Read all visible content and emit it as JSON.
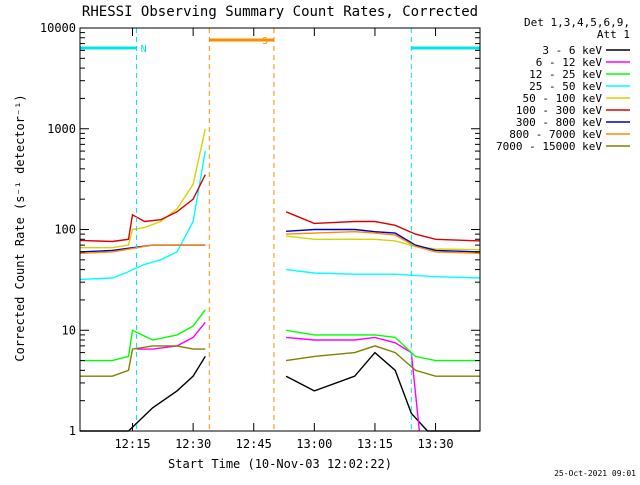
{
  "chart_data": {
    "type": "line",
    "title": "RHESSI Observing Summary Count Rates, Corrected",
    "xlabel": "Start Time (10-Nov-03 12:02:22)",
    "ylabel": "Corrected Count Rate (s⁻¹ detector⁻¹)",
    "yscale": "log",
    "ylim": [
      1,
      10000
    ],
    "xlim": [
      "12:02",
      "13:41"
    ],
    "x_ticks": [
      "12:15",
      "12:30",
      "12:45",
      "13:00",
      "13:15",
      "13:30"
    ],
    "y_ticks": [
      "1",
      "10",
      "100",
      "1000",
      "10000"
    ],
    "grid": false,
    "legend_position": "right",
    "legend_header": [
      "Det 1,3,4,5,6,9,",
      "Att 1"
    ],
    "footer_timestamp": "25-Oct-2021 09:01",
    "flags": {
      "night": {
        "label": "N",
        "color": "#00e5e5",
        "spans": [
          [
            "12:02",
            "12:16"
          ],
          [
            "13:24",
            "13:41"
          ]
        ]
      },
      "saa": {
        "label": "S",
        "color": "#ff8c00",
        "spans": [
          [
            "12:34",
            "12:50"
          ]
        ]
      }
    },
    "gap": [
      "12:34",
      "12:53"
    ],
    "series": [
      {
        "name": "3 - 6 keV",
        "color": "#000000",
        "x": [
          "12:02",
          "12:10",
          "12:14",
          "12:20",
          "12:26",
          "12:30",
          "12:33",
          "12:53",
          "13:00",
          "13:10",
          "13:15",
          "13:20",
          "13:24",
          "13:28",
          "13:41"
        ],
        "values": [
          1,
          1,
          1,
          1.7,
          2.5,
          3.5,
          5.5,
          3.5,
          2.5,
          3.5,
          6,
          4,
          1.5,
          1,
          1
        ]
      },
      {
        "name": "6 - 12 keV",
        "color": "#ff00ff",
        "x": [
          "12:16",
          "12:20",
          "12:26",
          "12:30",
          "12:33",
          "12:53",
          "13:00",
          "13:10",
          "13:15",
          "13:20",
          "13:24",
          "13:26"
        ],
        "values": [
          6.5,
          6.5,
          7,
          8.5,
          12,
          8.5,
          8,
          8,
          8.5,
          7.5,
          6,
          1
        ]
      },
      {
        "name": "12 - 25 keV",
        "color": "#00ff00",
        "x": [
          "12:02",
          "12:10",
          "12:14",
          "12:15",
          "12:20",
          "12:26",
          "12:30",
          "12:33",
          "12:53",
          "13:00",
          "13:10",
          "13:15",
          "13:20",
          "13:25",
          "13:30",
          "13:41"
        ],
        "values": [
          5,
          5,
          5.5,
          10,
          8,
          9,
          11,
          16,
          10,
          9,
          9,
          9,
          8.5,
          5.5,
          5,
          5
        ]
      },
      {
        "name": "25 - 50 keV",
        "color": "#00ffff",
        "x": [
          "12:02",
          "12:10",
          "12:14",
          "12:15",
          "12:18",
          "12:22",
          "12:26",
          "12:30",
          "12:33",
          "12:53",
          "13:00",
          "13:10",
          "13:15",
          "13:20",
          "13:25",
          "13:30",
          "13:41"
        ],
        "values": [
          32,
          33,
          38,
          40,
          45,
          50,
          60,
          120,
          600,
          40,
          37,
          36,
          36,
          36,
          35,
          34,
          33
        ]
      },
      {
        "name": "50 - 100 keV",
        "color": "#d4d400",
        "x": [
          "12:02",
          "12:10",
          "12:14",
          "12:15",
          "12:18",
          "12:22",
          "12:26",
          "12:30",
          "12:33",
          "12:53",
          "13:00",
          "13:10",
          "13:15",
          "13:20",
          "13:25",
          "13:30",
          "13:41"
        ],
        "values": [
          66,
          66,
          70,
          100,
          105,
          120,
          160,
          280,
          1000,
          86,
          80,
          80,
          80,
          77,
          68,
          64,
          63
        ]
      },
      {
        "name": "100 - 300 keV",
        "color": "#dd0000",
        "x": [
          "12:02",
          "12:10",
          "12:14",
          "12:15",
          "12:18",
          "12:22",
          "12:26",
          "12:30",
          "12:33",
          "12:53",
          "13:00",
          "13:10",
          "13:15",
          "13:20",
          "13:25",
          "13:30",
          "13:41"
        ],
        "values": [
          78,
          76,
          80,
          140,
          120,
          125,
          150,
          200,
          350,
          150,
          115,
          120,
          120,
          110,
          90,
          80,
          77
        ]
      },
      {
        "name": "300 - 800 keV",
        "color": "#0000cc",
        "x": [
          "12:02",
          "12:10",
          "12:20",
          "12:30",
          "12:33",
          "12:53",
          "13:00",
          "13:10",
          "13:15",
          "13:20",
          "13:25",
          "13:30",
          "13:41"
        ],
        "values": [
          60,
          62,
          70,
          70,
          70,
          96,
          100,
          100,
          95,
          92,
          70,
          62,
          60
        ]
      },
      {
        "name": "800 - 7000 keV",
        "color": "#ff8c00",
        "x": [
          "12:02",
          "12:10",
          "12:20",
          "12:30",
          "12:33",
          "12:53",
          "13:00",
          "13:10",
          "13:15",
          "13:20",
          "13:25",
          "13:30",
          "13:41"
        ],
        "values": [
          58,
          60,
          70,
          70,
          70,
          90,
          92,
          95,
          92,
          88,
          68,
          60,
          58
        ]
      },
      {
        "name": "7000 - 15000 keV",
        "color": "#808000",
        "x": [
          "12:02",
          "12:10",
          "12:14",
          "12:15",
          "12:20",
          "12:26",
          "12:30",
          "12:33",
          "12:53",
          "13:00",
          "13:10",
          "13:15",
          "13:20",
          "13:25",
          "13:30",
          "13:41"
        ],
        "values": [
          3.5,
          3.5,
          4,
          6.5,
          7,
          7,
          6.5,
          6.5,
          5,
          5.5,
          6,
          7,
          6,
          4,
          3.5,
          3.5
        ]
      }
    ]
  }
}
